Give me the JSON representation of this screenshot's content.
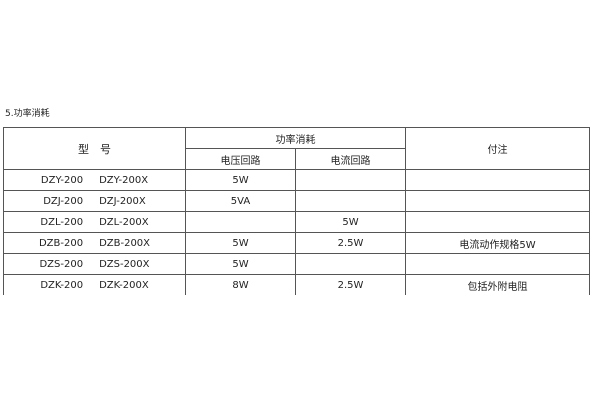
{
  "section_title": "5.功率消耗",
  "table": {
    "headers": {
      "model": "型　号",
      "power": "功率消耗",
      "voltage_circuit": "电压回路",
      "current_circuit": "电流回路",
      "note": "付注"
    },
    "rows": [
      {
        "model_a": "DZY-200",
        "model_b": "DZY-200X",
        "voltage": "5W",
        "current": "",
        "note": ""
      },
      {
        "model_a": "DZJ-200",
        "model_b": "DZJ-200X",
        "voltage": "5VA",
        "current": "",
        "note": ""
      },
      {
        "model_a": "DZL-200",
        "model_b": "DZL-200X",
        "voltage": "",
        "current": "5W",
        "note": ""
      },
      {
        "model_a": "DZB-200",
        "model_b": "DZB-200X",
        "voltage": "5W",
        "current": "2.5W",
        "note": "电流动作规格5W"
      },
      {
        "model_a": "DZS-200",
        "model_b": "DZS-200X",
        "voltage": "5W",
        "current": "",
        "note": ""
      },
      {
        "model_a": "DZK-200",
        "model_b": "DZK-200X",
        "voltage": "8W",
        "current": "2.5W",
        "note": "包括外附电阻"
      }
    ]
  }
}
